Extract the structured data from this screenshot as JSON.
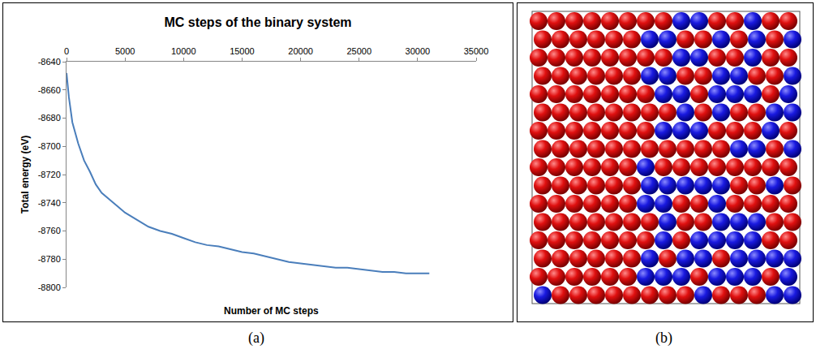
{
  "chart_data": {
    "type": "line",
    "title": "MC steps of the binary system",
    "x_label": "Number of MC steps",
    "y_label": "Total energy (eV)",
    "x": [
      0,
      200,
      500,
      1000,
      1500,
      2000,
      2500,
      3000,
      4000,
      5000,
      6000,
      7000,
      8000,
      9000,
      10000,
      11000,
      12000,
      13000,
      14000,
      15000,
      16000,
      17000,
      18000,
      19000,
      20000,
      21000,
      22000,
      23000,
      24000,
      25000,
      26000,
      27000,
      28000,
      29000,
      30000,
      31000
    ],
    "series": [
      {
        "name": "Total energy",
        "color": "#4a7ebb",
        "values": [
          -8648,
          -8665,
          -8683,
          -8698,
          -8710,
          -8718,
          -8727,
          -8733,
          -8740,
          -8747,
          -8752,
          -8757,
          -8760,
          -8762,
          -8765,
          -8768,
          -8770,
          -8771,
          -8773,
          -8775,
          -8776,
          -8778,
          -8780,
          -8782,
          -8783,
          -8784,
          -8785,
          -8786,
          -8786,
          -8787,
          -8788,
          -8789,
          -8789,
          -8790,
          -8790,
          -8790
        ]
      }
    ],
    "xlim": [
      0,
      35000
    ],
    "xticks": [
      0,
      5000,
      10000,
      15000,
      20000,
      25000,
      30000,
      35000
    ],
    "ylim": [
      -8800,
      -8640
    ],
    "yticks": [
      -8800,
      -8780,
      -8760,
      -8740,
      -8720,
      -8700,
      -8680,
      -8660,
      -8640
    ],
    "grid": false
  },
  "captions": [
    "(a)",
    "(b)"
  ]
}
